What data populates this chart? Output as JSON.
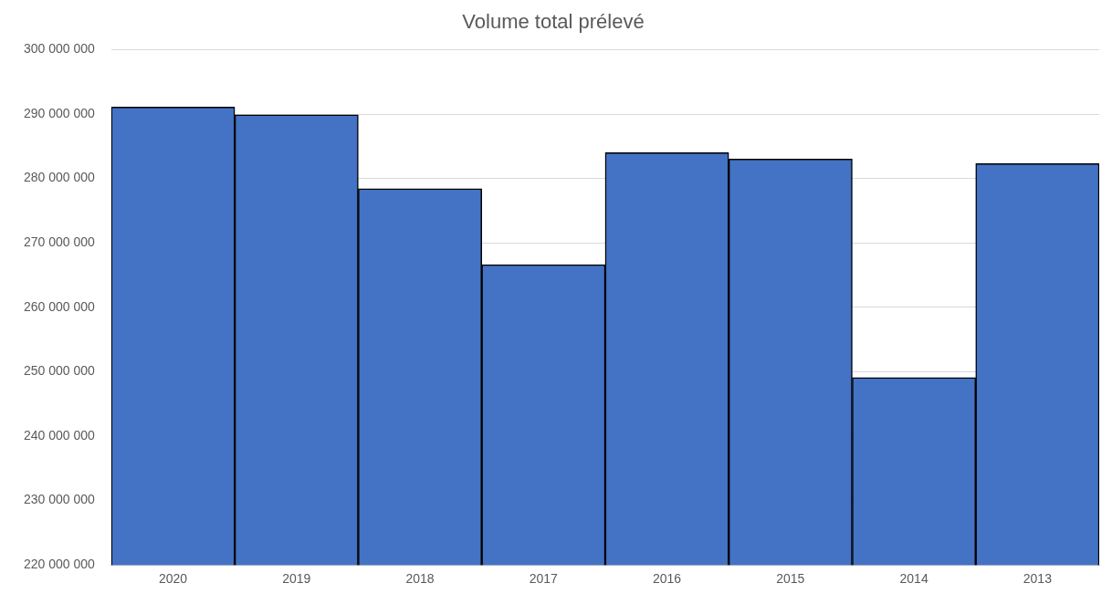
{
  "chart_data": {
    "type": "bar",
    "title": "Volume total prélevé",
    "categories": [
      "2020",
      "2019",
      "2018",
      "2017",
      "2016",
      "2015",
      "2014",
      "2013"
    ],
    "values": [
      291100000,
      289900000,
      278400000,
      266600000,
      284000000,
      283000000,
      249100000,
      282300000
    ],
    "color": "#4472c4",
    "ylim": [
      220000000,
      300000000
    ],
    "yticks": [
      {
        "value": 220000000,
        "label": "220 000 000"
      },
      {
        "value": 230000000,
        "label": "230 000 000"
      },
      {
        "value": 240000000,
        "label": "240 000 000"
      },
      {
        "value": 250000000,
        "label": "250 000 000"
      },
      {
        "value": 260000000,
        "label": "260 000 000"
      },
      {
        "value": 270000000,
        "label": "270 000 000"
      },
      {
        "value": 280000000,
        "label": "280 000 000"
      },
      {
        "value": 290000000,
        "label": "290 000 000"
      },
      {
        "value": 300000000,
        "label": "300 000 000"
      }
    ],
    "grid": "y"
  }
}
